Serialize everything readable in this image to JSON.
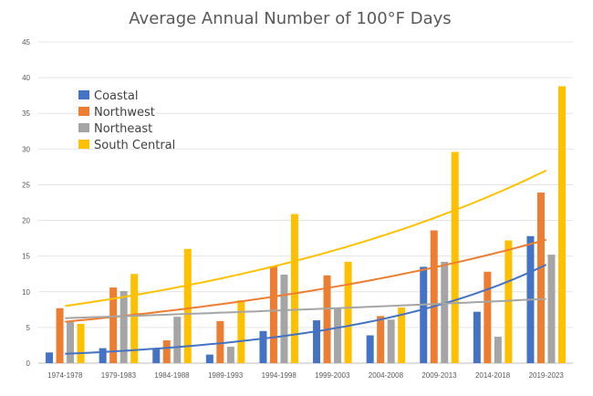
{
  "chart_data": {
    "type": "bar",
    "title": "Average Annual Number of 100°F Days",
    "xlabel": "",
    "ylabel": "",
    "categories": [
      "1974-1978",
      "1979-1983",
      "1984-1988",
      "1989-1993",
      "1994-1998",
      "1999-2003",
      "2004-2008",
      "2009-2013",
      "2014-2018",
      "2019-2023"
    ],
    "ylim": [
      0,
      45
    ],
    "yticks": [
      0,
      5,
      10,
      15,
      20,
      25,
      30,
      35,
      40,
      45
    ],
    "grid": true,
    "legend_position": "top-left",
    "series": [
      {
        "name": "Coastal",
        "color": "#4472C4",
        "values": [
          1.5,
          2.1,
          2.0,
          1.2,
          4.5,
          6.0,
          3.9,
          13.5,
          7.2,
          17.8
        ],
        "trendline": {
          "kind": "exponential",
          "start": 1.3,
          "end": 13.8
        }
      },
      {
        "name": "Northwest",
        "color": "#ED7D31",
        "values": [
          7.7,
          10.6,
          3.2,
          5.9,
          13.6,
          12.3,
          6.6,
          18.6,
          12.8,
          23.9
        ],
        "trendline": {
          "kind": "exponential",
          "start": 5.8,
          "end": 17.3
        }
      },
      {
        "name": "Northeast",
        "color": "#A5A5A5",
        "values": [
          5.8,
          10.1,
          6.5,
          2.3,
          12.4,
          7.6,
          6.1,
          14.2,
          3.7,
          15.2
        ],
        "trendline": {
          "kind": "exponential",
          "start": 6.3,
          "end": 9.0
        }
      },
      {
        "name": "South Central",
        "color": "#FFC000",
        "values": [
          5.5,
          12.5,
          16.0,
          8.8,
          20.9,
          14.2,
          7.8,
          29.6,
          17.2,
          38.8
        ],
        "trendline": {
          "kind": "exponential",
          "start": 8.0,
          "end": 27.0
        }
      }
    ]
  }
}
